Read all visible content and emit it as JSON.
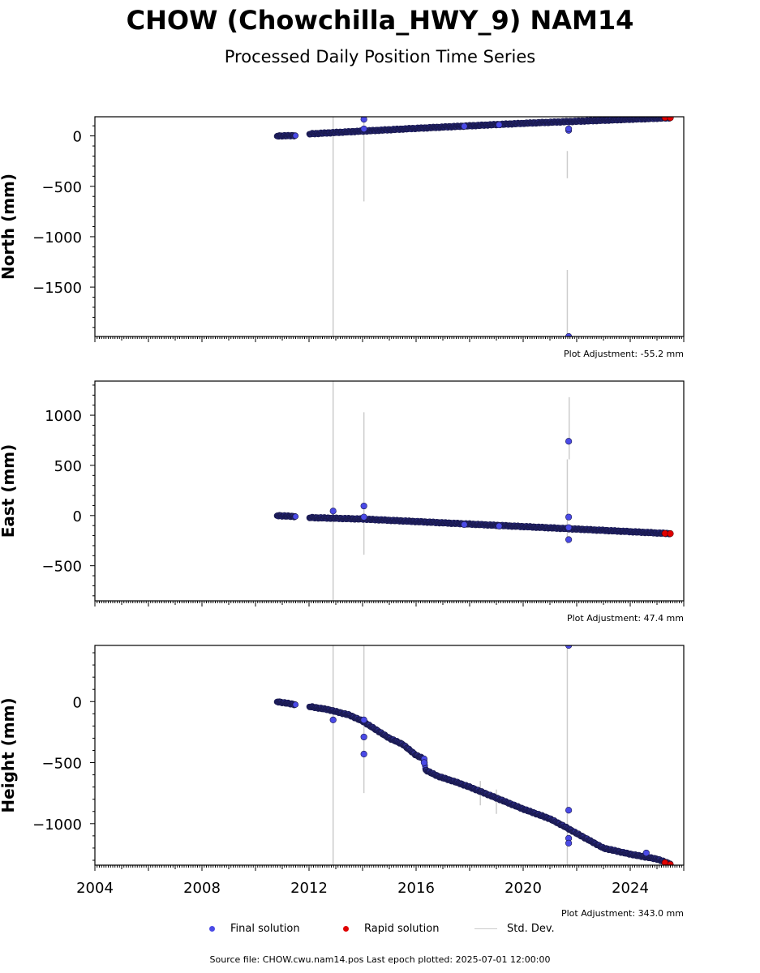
{
  "title": "CHOW (Chowchilla_HWY_9) NAM14",
  "subtitle": "Processed Daily Position Time Series",
  "colors": {
    "final": "#4a4ae6",
    "final_edge": "#1a1a4d",
    "rapid": "#e00000",
    "std_dev": "#cccccc"
  },
  "legend": {
    "final": "Final solution",
    "rapid": "Rapid solution",
    "std_dev": "Std. Dev."
  },
  "source": "Source file: CHOW.cwu.nam14.pos  Last epoch plotted: 2025-07-01 12:00:00",
  "chart_data": [
    {
      "type": "scatter",
      "ylabel": "North (mm)",
      "adjustment": "Plot Adjustment: -55.2 mm",
      "xlim": [
        2004,
        2026
      ],
      "ylim": [
        -1990,
        190
      ],
      "yticks": [
        0,
        -500,
        -1000,
        -1500
      ],
      "trend": [
        [
          2010.8,
          0
        ],
        [
          2011.5,
          3
        ],
        [
          2012.0,
          20
        ],
        [
          2016,
          75
        ],
        [
          2020,
          125
        ],
        [
          2025.5,
          180
        ]
      ],
      "gaps": [
        [
          2011.5,
          2012.0
        ]
      ],
      "outliers": [
        [
          2014.05,
          165
        ],
        [
          2014.05,
          70
        ],
        [
          2017.8,
          95
        ],
        [
          2019.1,
          110
        ],
        [
          2021.7,
          55
        ],
        [
          2021.7,
          70
        ],
        [
          2021.7,
          -1990
        ]
      ],
      "std_dev": [
        [
          2012.9,
          -1990,
          190
        ],
        [
          2014.05,
          -650,
          190
        ],
        [
          2021.65,
          -420,
          -150
        ],
        [
          2021.65,
          -1990,
          -1330
        ]
      ],
      "rapid": [
        [
          2025.3,
          182
        ],
        [
          2025.5,
          180
        ]
      ]
    },
    {
      "type": "scatter",
      "ylabel": "East (mm)",
      "adjustment": "Plot Adjustment: 47.4 mm",
      "xlim": [
        2004,
        2026
      ],
      "ylim": [
        -850,
        1340
      ],
      "yticks": [
        1000,
        500,
        0,
        -500
      ],
      "trend": [
        [
          2010.8,
          0
        ],
        [
          2011.5,
          -10
        ],
        [
          2012.0,
          -20
        ],
        [
          2014,
          -35
        ],
        [
          2016,
          -60
        ],
        [
          2018,
          -85
        ],
        [
          2020,
          -110
        ],
        [
          2022,
          -135
        ],
        [
          2025.5,
          -180
        ]
      ],
      "gaps": [
        [
          2011.5,
          2012.0
        ]
      ],
      "outliers": [
        [
          2012.9,
          45
        ],
        [
          2014.05,
          95
        ],
        [
          2014.05,
          -15
        ],
        [
          2021.7,
          740
        ],
        [
          2021.7,
          -15
        ],
        [
          2021.7,
          -120
        ],
        [
          2021.7,
          -240
        ],
        [
          2017.8,
          -90
        ],
        [
          2019.1,
          -105
        ]
      ],
      "std_dev": [
        [
          2012.9,
          -850,
          1340
        ],
        [
          2014.05,
          -390,
          1030
        ],
        [
          2021.65,
          -280,
          560
        ],
        [
          2021.72,
          560,
          1180
        ]
      ],
      "rapid": [
        [
          2025.3,
          -178
        ],
        [
          2025.5,
          -180
        ]
      ]
    },
    {
      "type": "scatter",
      "ylabel": "Height (mm)",
      "adjustment": "Plot Adjustment: 343.0 mm",
      "xlim": [
        2004,
        2026
      ],
      "ylim": [
        -1340,
        460
      ],
      "yticks": [
        0,
        -500,
        -1000
      ],
      "xticks": [
        2004,
        2008,
        2012,
        2016,
        2020,
        2024
      ],
      "trend": [
        [
          2010.8,
          0
        ],
        [
          2011.5,
          -25
        ],
        [
          2012.0,
          -40
        ],
        [
          2012.7,
          -65
        ],
        [
          2013.5,
          -110
        ],
        [
          2014.0,
          -160
        ],
        [
          2014.5,
          -230
        ],
        [
          2015.0,
          -300
        ],
        [
          2015.5,
          -350
        ],
        [
          2016.0,
          -440
        ],
        [
          2016.3,
          -470
        ],
        [
          2016.35,
          -560
        ],
        [
          2016.8,
          -610
        ],
        [
          2017.5,
          -660
        ],
        [
          2018.0,
          -700
        ],
        [
          2019.0,
          -790
        ],
        [
          2020.0,
          -880
        ],
        [
          2021.0,
          -960
        ],
        [
          2021.6,
          -1030
        ],
        [
          2022.0,
          -1080
        ],
        [
          2022.5,
          -1140
        ],
        [
          2023.0,
          -1200
        ],
        [
          2024.0,
          -1250
        ],
        [
          2025.0,
          -1290
        ],
        [
          2025.5,
          -1330
        ]
      ],
      "gaps": [
        [
          2011.5,
          2012.0
        ]
      ],
      "outliers": [
        [
          2012.9,
          -150
        ],
        [
          2014.05,
          -290
        ],
        [
          2014.05,
          -430
        ],
        [
          2014.05,
          -150
        ],
        [
          2016.3,
          -470
        ],
        [
          2016.3,
          -500
        ],
        [
          2021.7,
          460
        ],
        [
          2021.7,
          -890
        ],
        [
          2021.7,
          -1120
        ],
        [
          2021.7,
          -1160
        ],
        [
          2024.6,
          -1240
        ]
      ],
      "std_dev": [
        [
          2012.9,
          -1340,
          460
        ],
        [
          2014.05,
          -750,
          460
        ],
        [
          2018.4,
          -850,
          -650
        ],
        [
          2019.0,
          -920,
          -720
        ],
        [
          2021.65,
          -1340,
          460
        ]
      ],
      "rapid": [
        [
          2025.3,
          -1320
        ],
        [
          2025.5,
          -1335
        ]
      ]
    }
  ]
}
